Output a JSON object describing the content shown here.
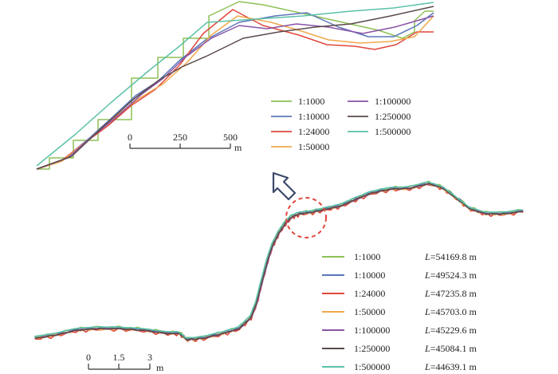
{
  "scales": [
    {
      "name": "1:1000",
      "color": "#8dc156",
      "length_value": "54169.8 m"
    },
    {
      "name": "1:10000",
      "color": "#5b77b8",
      "length_value": "49524.3 m"
    },
    {
      "name": "1:24000",
      "color": "#e0473c",
      "length_value": "47235.8 m"
    },
    {
      "name": "1:50000",
      "color": "#f0a84d",
      "length_value": "45703.0 m"
    },
    {
      "name": "1:100000",
      "color": "#8a53a6",
      "length_value": "45229.6 m"
    },
    {
      "name": "1:250000",
      "color": "#5b4a4a",
      "length_value": "45084.1 m"
    },
    {
      "name": "1:500000",
      "color": "#5cc1a8",
      "length_value": "44639.1 m"
    }
  ],
  "length_symbol": "L",
  "length_equals": "=",
  "detail_scalebar": {
    "ticks": [
      "0",
      "250",
      "500"
    ],
    "unit": "m"
  },
  "overview_scalebar": {
    "ticks": [
      "0",
      "1.5",
      "3"
    ],
    "unit": "m"
  }
}
